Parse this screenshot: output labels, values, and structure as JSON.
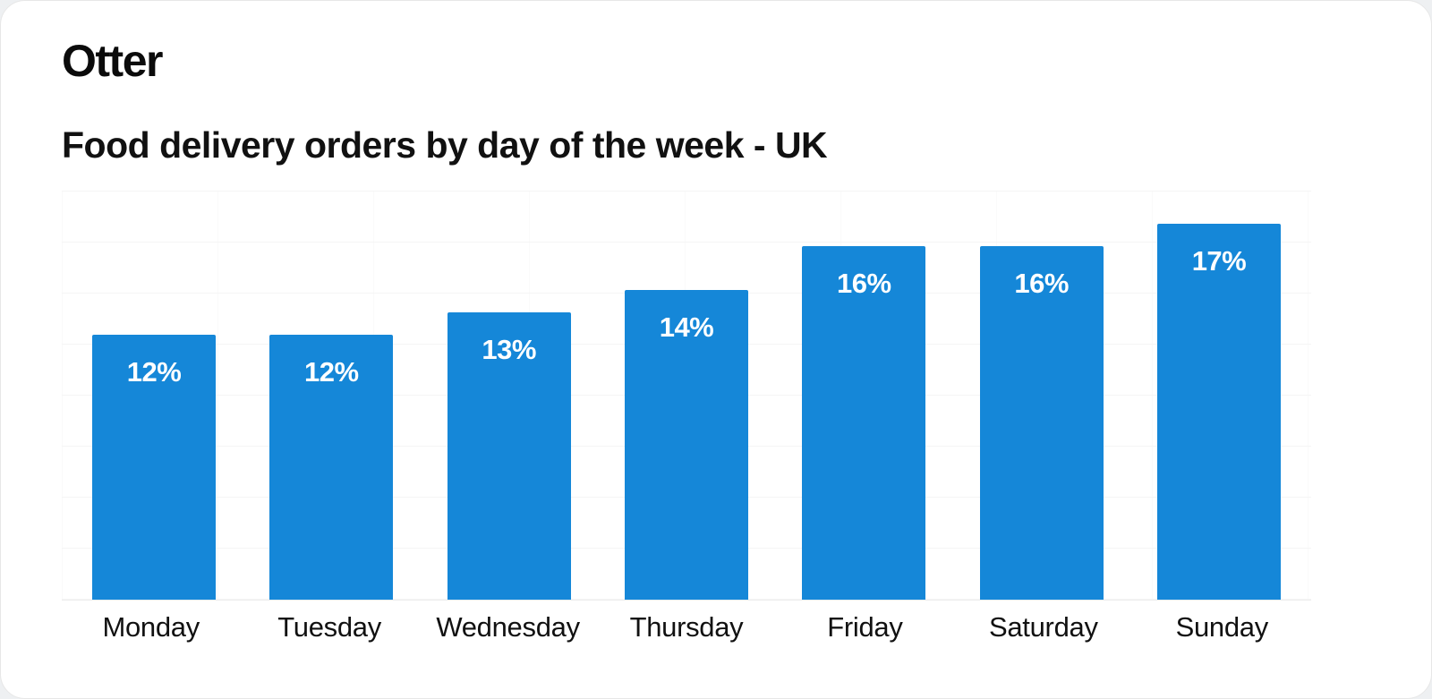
{
  "header": {
    "brand": "Otter"
  },
  "chart_data": {
    "type": "bar",
    "title": "Food delivery orders by day of the week - UK",
    "categories": [
      "Monday",
      "Tuesday",
      "Wednesday",
      "Thursday",
      "Friday",
      "Saturday",
      "Sunday"
    ],
    "values": [
      12,
      12,
      13,
      14,
      16,
      16,
      17
    ],
    "value_suffix": "%",
    "xlabel": "",
    "ylabel": "",
    "ylim": [
      0,
      18.5
    ],
    "grid": "faint horizontal and vertical gridlines",
    "legend": "none",
    "bar_color": "#1587d8",
    "bar_label_color": "#ffffff"
  }
}
